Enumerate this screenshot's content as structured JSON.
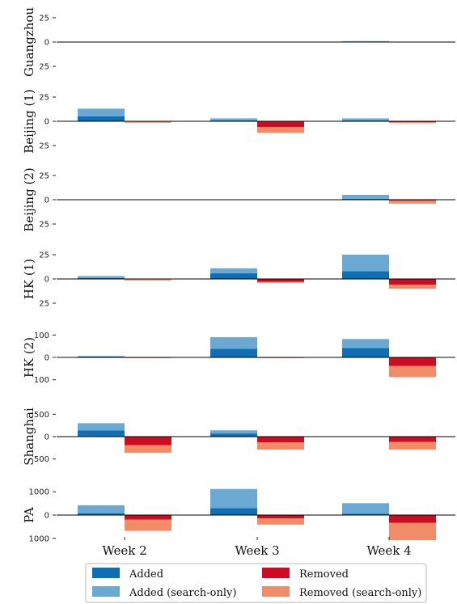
{
  "colors": {
    "added": "#0f6eb4",
    "added_search_only": "#6aa9d3",
    "removed": "#cc0c22",
    "removed_search_only": "#f08c68",
    "axis": "#000000",
    "legend_border": "#bbbbbb"
  },
  "chart_data": {
    "type": "bar",
    "stacked_diverging": true,
    "categories": [
      "Week 2",
      "Week 3",
      "Week 4"
    ],
    "legend": {
      "placement": "bottom",
      "entries": [
        {
          "key": "added",
          "label": "Added"
        },
        {
          "key": "removed",
          "label": "Removed"
        },
        {
          "key": "added_search_only",
          "label": "Added (search-only)"
        },
        {
          "key": "removed_search_only",
          "label": "Removed (search-only)"
        }
      ]
    },
    "panels": [
      {
        "label": "Guangzhou",
        "ylim": [
          -30,
          30
        ],
        "ticks": [
          {
            "v": 25,
            "t": "25"
          },
          {
            "v": 0,
            "t": "0"
          },
          {
            "v": -25,
            "t": "25"
          }
        ],
        "added": [
          0,
          0,
          0.5
        ],
        "added_search_only": [
          0,
          0,
          0.5
        ],
        "removed": [
          0,
          0,
          0
        ],
        "removed_search_only": [
          0,
          0,
          0
        ]
      },
      {
        "label": "Beijing (1)",
        "ylim": [
          -30,
          30
        ],
        "ticks": [
          {
            "v": 25,
            "t": "25"
          },
          {
            "v": 0,
            "t": "0"
          },
          {
            "v": -25,
            "t": "25"
          }
        ],
        "added": [
          5,
          1,
          1
        ],
        "added_search_only": [
          8,
          2,
          2
        ],
        "removed": [
          0.5,
          6,
          1
        ],
        "removed_search_only": [
          1,
          6,
          1
        ]
      },
      {
        "label": "Beijing (2)",
        "ylim": [
          -30,
          30
        ],
        "ticks": [
          {
            "v": 25,
            "t": "25"
          },
          {
            "v": 0,
            "t": "0"
          },
          {
            "v": -25,
            "t": "25"
          }
        ],
        "added": [
          0,
          0,
          1
        ],
        "added_search_only": [
          0,
          0,
          4
        ],
        "removed": [
          0,
          0,
          1
        ],
        "removed_search_only": [
          0,
          0,
          3
        ]
      },
      {
        "label": "HK (1)",
        "ylim": [
          -30,
          30
        ],
        "ticks": [
          {
            "v": 25,
            "t": "25"
          },
          {
            "v": 0,
            "t": "0"
          },
          {
            "v": -25,
            "t": "25"
          }
        ],
        "added": [
          1,
          6,
          8
        ],
        "added_search_only": [
          2,
          5,
          17
        ],
        "removed": [
          0.5,
          3,
          6
        ],
        "removed_search_only": [
          1,
          1,
          4
        ]
      },
      {
        "label": "HK (2)",
        "ylim": [
          -130,
          130
        ],
        "ticks": [
          {
            "v": 100,
            "t": "100"
          },
          {
            "v": 0,
            "t": "0"
          },
          {
            "v": -100,
            "t": "100"
          }
        ],
        "added": [
          4,
          38,
          42
        ],
        "added_search_only": [
          2,
          52,
          40
        ],
        "removed": [
          2,
          2,
          38
        ],
        "removed_search_only": [
          1,
          1,
          50
        ]
      },
      {
        "label": "Shanghai",
        "ylim": [
          -650,
          650
        ],
        "ticks": [
          {
            "v": 500,
            "t": "500"
          },
          {
            "v": 0,
            "t": "0"
          },
          {
            "v": -500,
            "t": "500"
          }
        ],
        "added": [
          140,
          70,
          0
        ],
        "added_search_only": [
          160,
          70,
          0
        ],
        "removed": [
          190,
          130,
          120
        ],
        "removed_search_only": [
          170,
          160,
          170
        ]
      },
      {
        "label": "PA",
        "ylim": [
          -1250,
          1250
        ],
        "ticks": [
          {
            "v": 1000,
            "t": "1000"
          },
          {
            "v": 0,
            "t": "0"
          },
          {
            "v": -1000,
            "t": "1000"
          }
        ],
        "added": [
          80,
          300,
          60
        ],
        "added_search_only": [
          340,
          820,
          450
        ],
        "removed": [
          200,
          140,
          330
        ],
        "removed_search_only": [
          480,
          270,
          750
        ]
      }
    ]
  }
}
